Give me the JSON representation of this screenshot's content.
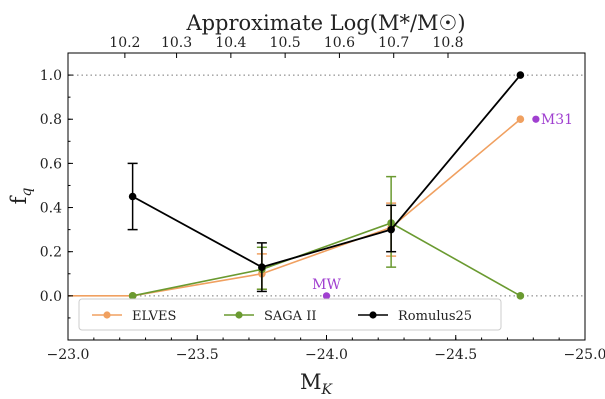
{
  "chart_data": {
    "type": "line",
    "xlabel": "M",
    "xlabel_sub": "K",
    "ylabel": "f",
    "ylabel_sub": "q",
    "top_xlabel": "Approximate Log(M*/M☉)",
    "xlim": [
      -23.0,
      -25.0
    ],
    "ylim": [
      -0.2,
      1.1
    ],
    "x_ticks": [
      -23.0,
      -23.5,
      -24.0,
      -24.5,
      -25.0
    ],
    "x_tick_labels": [
      "−23.0",
      "−23.5",
      "−24.0",
      "−24.5",
      "−25.0"
    ],
    "y_ticks": [
      0.0,
      0.2,
      0.4,
      0.6,
      0.8,
      1.0
    ],
    "y_tick_labels": [
      "0.0",
      "0.2",
      "0.4",
      "0.6",
      "0.8",
      "1.0"
    ],
    "top_ticks": [
      {
        "label": "10.2",
        "x": -23.22
      },
      {
        "label": "10.3",
        "x": -23.42
      },
      {
        "label": "10.4",
        "x": -23.63
      },
      {
        "label": "10.5",
        "x": -23.84
      },
      {
        "label": "10.6",
        "x": -24.05
      },
      {
        "label": "10.7",
        "x": -24.26
      },
      {
        "label": "10.8",
        "x": -24.47
      }
    ],
    "reference_lines": [
      0.0,
      1.0
    ],
    "series": [
      {
        "name": "ELVES",
        "color": "#f0a060",
        "points": [
          {
            "x": -22.5,
            "y": 0.0
          },
          {
            "x": -23.25,
            "y": 0.0
          },
          {
            "x": -23.75,
            "y": 0.1,
            "err_low": 0.07,
            "err_high": 0.09
          },
          {
            "x": -24.25,
            "y": 0.31,
            "err_low": 0.13,
            "err_high": 0.11
          },
          {
            "x": -24.75,
            "y": 0.8
          }
        ]
      },
      {
        "name": "SAGA II",
        "color": "#6a9a30",
        "points": [
          {
            "x": -23.25,
            "y": 0.0
          },
          {
            "x": -23.75,
            "y": 0.12,
            "err_low": 0.09,
            "err_high": 0.1
          },
          {
            "x": -24.25,
            "y": 0.33,
            "err_low": 0.2,
            "err_high": 0.21
          },
          {
            "x": -24.75,
            "y": 0.0
          }
        ]
      },
      {
        "name": "Romulus25",
        "color": "#000000",
        "points": [
          {
            "x": -23.25,
            "y": 0.45,
            "err_low": 0.15,
            "err_high": 0.15
          },
          {
            "x": -23.75,
            "y": 0.13,
            "err_low": 0.11,
            "err_high": 0.11
          },
          {
            "x": -24.25,
            "y": 0.3,
            "err_low": 0.1,
            "err_high": 0.11
          },
          {
            "x": -24.75,
            "y": 1.0
          }
        ]
      }
    ],
    "annotations": [
      {
        "label": "MW",
        "x": -24.0,
        "y": 0.0,
        "color": "#a040d0"
      },
      {
        "label": "M31",
        "x": -24.81,
        "y": 0.8,
        "color": "#a040d0"
      }
    ],
    "legend": {
      "placement": "bottom",
      "entries": [
        "ELVES",
        "SAGA II",
        "Romulus25"
      ]
    }
  }
}
